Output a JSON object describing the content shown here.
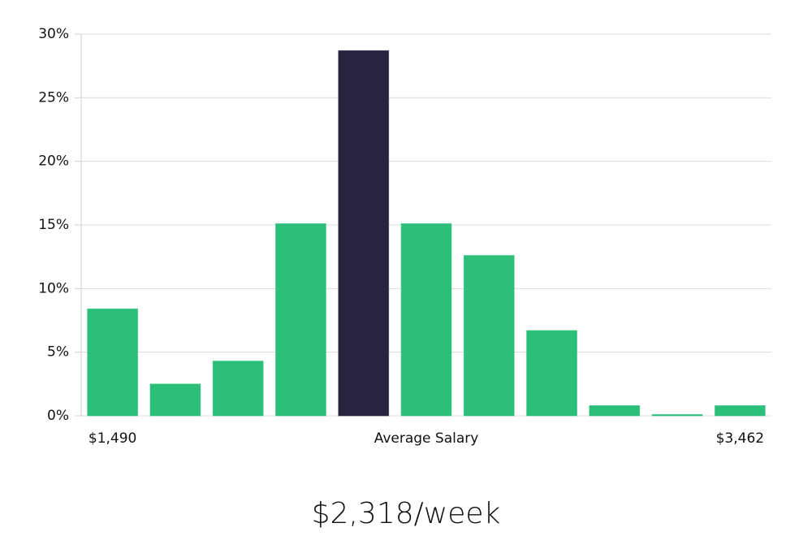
{
  "chart_data": {
    "type": "bar",
    "categories": [
      "$1,490",
      null,
      null,
      null,
      null,
      "Average Salary",
      null,
      null,
      null,
      null,
      "$3,462"
    ],
    "values": [
      8.4,
      2.5,
      4.3,
      15.1,
      28.7,
      15.1,
      12.6,
      6.7,
      0.8,
      0.1,
      0.8
    ],
    "colors": [
      "#2bbf7a",
      "#2bbf7a",
      "#2bbf7a",
      "#2bbf7a",
      "#27233f",
      "#2bbf7a",
      "#2bbf7a",
      "#2bbf7a",
      "#2bbf7a",
      "#2bbf7a",
      "#2bbf7a"
    ],
    "ylim": [
      0,
      30
    ],
    "yticks": [
      {
        "value": 0,
        "label": "0%"
      },
      {
        "value": 5,
        "label": "5%"
      },
      {
        "value": 10,
        "label": "10%"
      },
      {
        "value": 15,
        "label": "15%"
      },
      {
        "value": 20,
        "label": "20%"
      },
      {
        "value": 25,
        "label": "25%"
      },
      {
        "value": 30,
        "label": "30%"
      }
    ],
    "grid": true,
    "annotation": "$2,318/week"
  }
}
